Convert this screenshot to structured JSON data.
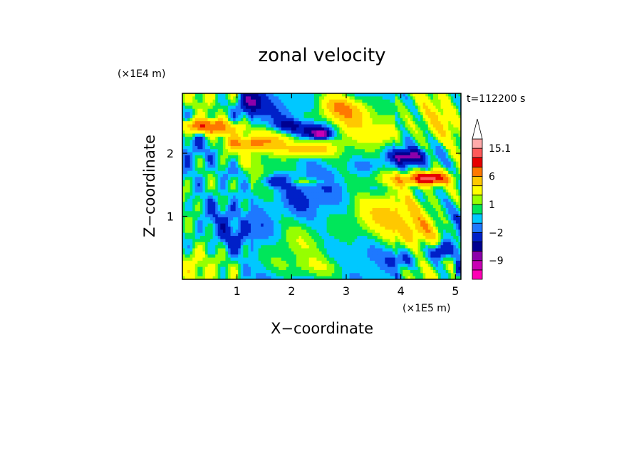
{
  "chart_data": {
    "type": "heatmap",
    "title": "zonal velocity",
    "xlabel": "X−coordinate",
    "ylabel": "Z−coordinate",
    "x_unit": "(×1E5 m)",
    "y_unit": "(×1E4 m)",
    "time_label": "t=112200 s",
    "xlim": [
      0.0,
      5.1
    ],
    "ylim": [
      0.0,
      2.95
    ],
    "x_ticks": [
      1,
      2,
      3,
      4,
      5
    ],
    "y_ticks": [
      1,
      2
    ],
    "x_tick_labels": [
      "1",
      "2",
      "3",
      "4",
      "5"
    ],
    "y_tick_labels": [
      "1",
      "2"
    ],
    "colorbar": {
      "levels": [
        -15,
        -12,
        -9,
        -6,
        -4,
        -2,
        -1,
        0,
        1,
        2,
        4,
        6,
        9,
        12,
        15.1
      ],
      "colors": [
        "#ff00b4",
        "#c800b4",
        "#8c00aa",
        "#000090",
        "#0020c8",
        "#1e78ff",
        "#00c8ff",
        "#00e65a",
        "#96ff00",
        "#ffff00",
        "#ffc800",
        "#ff7800",
        "#e60000",
        "#ff5a5a",
        "#ffaaaa"
      ],
      "labels": [
        {
          "value": 15.1,
          "text": "15.1"
        },
        {
          "value": 6,
          "text": "6"
        },
        {
          "value": 1,
          "text": "1"
        },
        {
          "value": -2,
          "text": "−2"
        },
        {
          "value": -9,
          "text": "−9"
        }
      ],
      "extend": "max"
    },
    "features": [
      {
        "x": 0.6,
        "z": 2.4,
        "rx": 0.55,
        "rz": 0.12,
        "v": 6
      },
      {
        "x": 0.3,
        "z": 2.45,
        "rx": 0.35,
        "rz": 0.1,
        "v": 5
      },
      {
        "x": 1.6,
        "z": 2.2,
        "rx": 0.55,
        "rz": 0.15,
        "v": 5
      },
      {
        "x": 2.3,
        "z": 2.05,
        "rx": 0.4,
        "rz": 0.1,
        "v": 6
      },
      {
        "x": 1.1,
        "z": 2.15,
        "rx": 0.4,
        "rz": 0.1,
        "v": 4
      },
      {
        "x": 2.85,
        "z": 2.75,
        "rx": 0.3,
        "rz": 0.2,
        "v": 5
      },
      {
        "x": 3.2,
        "z": 2.6,
        "rx": 0.3,
        "rz": 0.25,
        "v": 4
      },
      {
        "x": 4.3,
        "z": 1.6,
        "rx": 0.55,
        "rz": 0.12,
        "v": 7
      },
      {
        "x": 4.55,
        "z": 1.6,
        "rx": 0.25,
        "rz": 0.08,
        "v": 9
      },
      {
        "x": 3.7,
        "z": 2.3,
        "rx": 0.3,
        "rz": 0.2,
        "v": 4
      },
      {
        "x": 4.7,
        "z": 2.4,
        "rx": 0.45,
        "rz": 0.35,
        "v": 3
      },
      {
        "x": 3.85,
        "z": 1.0,
        "rx": 0.8,
        "rz": 0.4,
        "v": 3
      },
      {
        "x": 4.4,
        "z": 0.75,
        "rx": 0.45,
        "rz": 0.25,
        "v": 4
      },
      {
        "x": 2.0,
        "z": 1.55,
        "rx": 0.55,
        "rz": 0.06,
        "v": 4
      },
      {
        "x": 2.4,
        "z": 2.35,
        "rx": 0.35,
        "rz": 0.12,
        "v": -6
      },
      {
        "x": 2.55,
        "z": 2.3,
        "rx": 0.15,
        "rz": 0.06,
        "v": -9
      },
      {
        "x": 1.95,
        "z": 2.45,
        "rx": 0.2,
        "rz": 0.08,
        "v": -4
      },
      {
        "x": 4.15,
        "z": 1.95,
        "rx": 0.3,
        "rz": 0.1,
        "v": -6
      },
      {
        "x": 1.75,
        "z": 1.55,
        "rx": 0.35,
        "rz": 0.08,
        "v": -6
      },
      {
        "x": 1.25,
        "z": 2.8,
        "rx": 0.2,
        "rz": 0.2,
        "v": -6
      },
      {
        "x": 1.0,
        "z": 1.7,
        "rx": 0.25,
        "rz": 0.15,
        "v": -2
      },
      {
        "x": 2.05,
        "z": 1.2,
        "rx": 0.45,
        "rz": 0.35,
        "v": -1.5
      },
      {
        "x": 1.45,
        "z": 0.75,
        "rx": 0.35,
        "rz": 0.25,
        "v": -1.5
      },
      {
        "x": 3.6,
        "z": 1.4,
        "rx": 0.35,
        "rz": 0.15,
        "v": -1.5
      },
      {
        "x": 2.7,
        "z": 0.9,
        "rx": 0.5,
        "rz": 0.35,
        "v": -0.5
      },
      {
        "x": 4.75,
        "z": 0.45,
        "rx": 0.15,
        "rz": 0.12,
        "v": -6
      },
      {
        "x": 5.05,
        "z": 0.15,
        "rx": 0.06,
        "rz": 0.12,
        "v": -6
      },
      {
        "x": 3.35,
        "z": 1.8,
        "rx": 0.25,
        "rz": 0.1,
        "v": -1.5
      },
      {
        "x": 0.25,
        "z": 0.35,
        "rx": 0.3,
        "rz": 0.25,
        "v": 1.5
      },
      {
        "x": 2.6,
        "z": 0.2,
        "rx": 0.9,
        "rz": 0.15,
        "v": 1.5
      },
      {
        "x": 0.85,
        "z": 0.55,
        "rx": 0.25,
        "rz": 0.3,
        "v": -1.2
      },
      {
        "x": 4.0,
        "z": 0.3,
        "rx": 0.25,
        "rz": 0.15,
        "v": -3
      }
    ]
  }
}
